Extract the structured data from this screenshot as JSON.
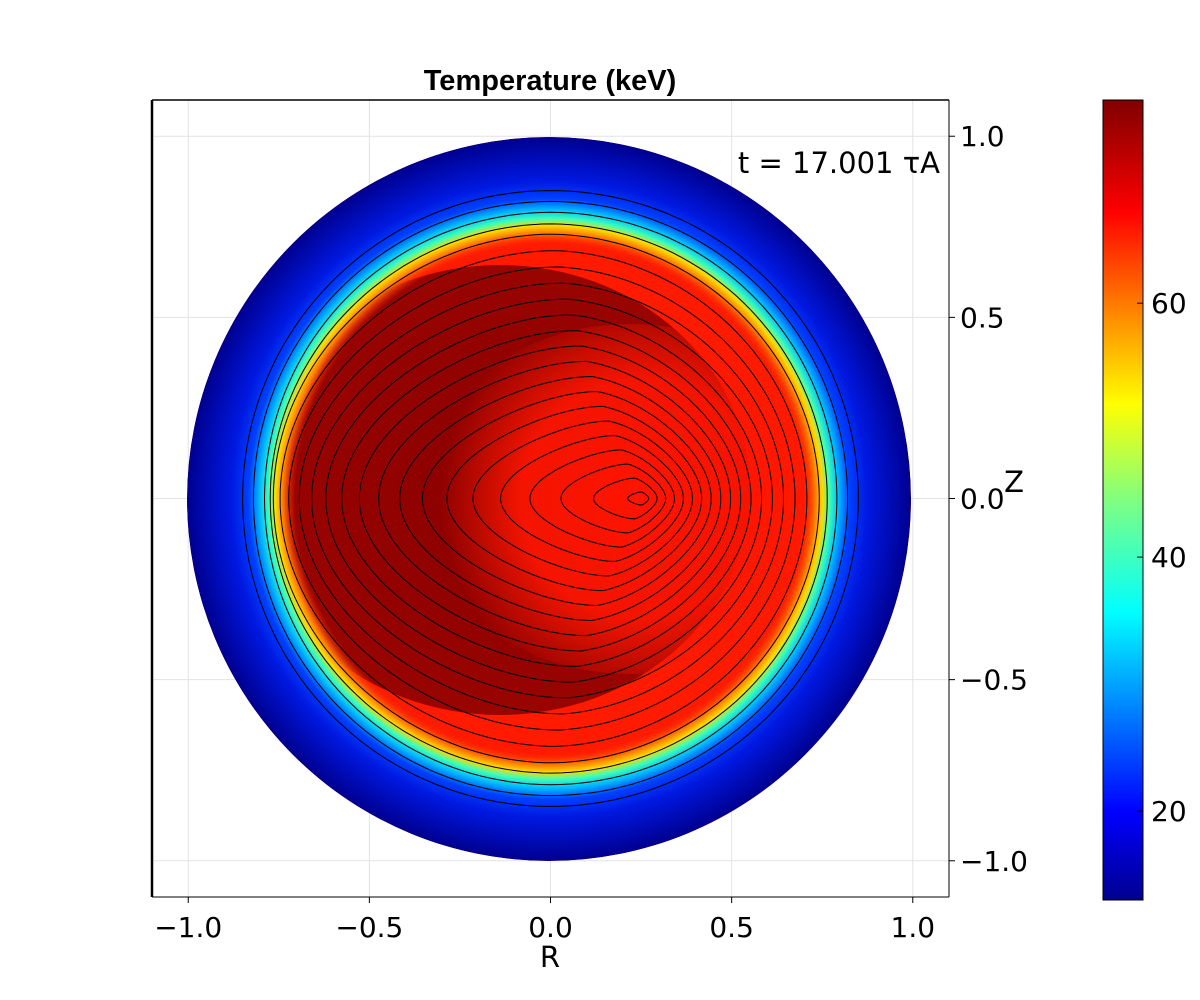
{
  "chart_data": {
    "type": "heatmap",
    "title": "Temperature (keV)",
    "xlabel": "R",
    "ylabel": "Z",
    "annotation": "t = 17.001 τA",
    "xlim": [
      -1.1,
      1.1
    ],
    "ylim": [
      -1.1,
      1.1
    ],
    "x_ticks": [
      -1.0,
      -0.5,
      0.0,
      0.5,
      1.0
    ],
    "x_tick_labels": [
      "−1.0",
      "−0.5",
      "0.0",
      "0.5",
      "1.0"
    ],
    "y_ticks": [
      1.0,
      0.5,
      0.0,
      -0.5,
      -1.0
    ],
    "y_tick_labels": [
      "1.0",
      "0.5",
      "0.0",
      "−0.5",
      "−1.0"
    ],
    "y_axis_position": "right",
    "grid": true,
    "domain_radius": 1.0,
    "colorbar": {
      "range": [
        13,
        76
      ],
      "ticks": [
        20,
        40,
        60
      ],
      "tick_labels": [
        "20",
        "40",
        "60"
      ],
      "colormap": "jet"
    },
    "profile": {
      "core_value": 74,
      "plateau_value": 71,
      "edge_radius": 0.75,
      "outer_value": 14,
      "hot_spot_center": [
        0.26,
        0.0
      ]
    },
    "contour_levels": 22
  }
}
